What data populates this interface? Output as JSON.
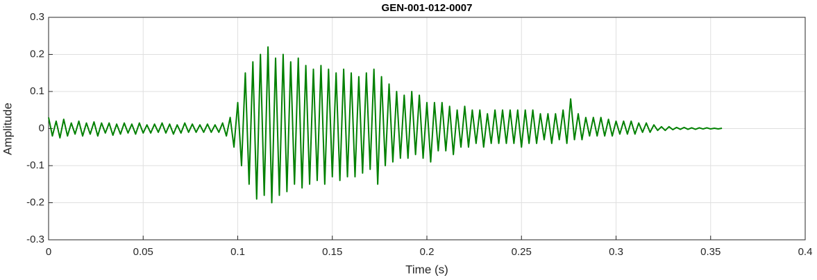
{
  "chart_data": {
    "type": "line",
    "title": "GEN-001-012-0007",
    "xlabel": "Time (s)",
    "ylabel": "Amplitude",
    "color": "#008000",
    "grid": true,
    "xlim": [
      0,
      0.4
    ],
    "xticks": [
      0,
      0.05,
      0.1,
      0.15,
      0.2,
      0.25,
      0.3,
      0.35,
      0.4
    ],
    "ylim": [
      -0.3,
      0.3
    ],
    "yticks": [
      -0.3,
      -0.2,
      -0.1,
      0,
      0.1,
      0.2,
      0.3
    ],
    "x": [
      0,
      0.002,
      0.004,
      0.006,
      0.008,
      0.01,
      0.012,
      0.014,
      0.016,
      0.018,
      0.02,
      0.022,
      0.024,
      0.026,
      0.028,
      0.03,
      0.032,
      0.034,
      0.036,
      0.038,
      0.04,
      0.042,
      0.044,
      0.046,
      0.048,
      0.05,
      0.052,
      0.054,
      0.056,
      0.058,
      0.06,
      0.062,
      0.064,
      0.066,
      0.068,
      0.07,
      0.072,
      0.074,
      0.076,
      0.078,
      0.08,
      0.082,
      0.084,
      0.086,
      0.088,
      0.09,
      0.092,
      0.094,
      0.096,
      0.098,
      0.1,
      0.102,
      0.104,
      0.106,
      0.108,
      0.11,
      0.112,
      0.114,
      0.116,
      0.118,
      0.12,
      0.122,
      0.124,
      0.126,
      0.128,
      0.13,
      0.132,
      0.134,
      0.136,
      0.138,
      0.14,
      0.142,
      0.144,
      0.146,
      0.148,
      0.15,
      0.152,
      0.154,
      0.156,
      0.158,
      0.16,
      0.162,
      0.164,
      0.166,
      0.168,
      0.17,
      0.172,
      0.174,
      0.176,
      0.178,
      0.18,
      0.182,
      0.184,
      0.186,
      0.188,
      0.19,
      0.192,
      0.194,
      0.196,
      0.198,
      0.2,
      0.202,
      0.204,
      0.206,
      0.208,
      0.21,
      0.212,
      0.214,
      0.216,
      0.218,
      0.22,
      0.222,
      0.224,
      0.226,
      0.228,
      0.23,
      0.232,
      0.234,
      0.236,
      0.238,
      0.24,
      0.242,
      0.244,
      0.246,
      0.248,
      0.25,
      0.252,
      0.254,
      0.256,
      0.258,
      0.26,
      0.262,
      0.264,
      0.266,
      0.268,
      0.27,
      0.272,
      0.274,
      0.276,
      0.278,
      0.28,
      0.282,
      0.284,
      0.286,
      0.288,
      0.29,
      0.292,
      0.294,
      0.296,
      0.298,
      0.3,
      0.302,
      0.304,
      0.306,
      0.308,
      0.31,
      0.312,
      0.314,
      0.316,
      0.318,
      0.32,
      0.322,
      0.324,
      0.326,
      0.328,
      0.33,
      0.332,
      0.334,
      0.336,
      0.338,
      0.34,
      0.342,
      0.344,
      0.346,
      0.348,
      0.35,
      0.352,
      0.354,
      0.356
    ],
    "values": [
      0.03,
      -0.02,
      0.02,
      -0.025,
      0.025,
      -0.02,
      0.015,
      -0.015,
      0.02,
      -0.02,
      0.015,
      -0.015,
      0.018,
      -0.02,
      0.015,
      -0.012,
      0.015,
      -0.018,
      0.012,
      -0.015,
      0.015,
      -0.012,
      0.012,
      -0.015,
      0.015,
      -0.012,
      0.01,
      -0.012,
      0.012,
      -0.01,
      0.015,
      -0.012,
      0.012,
      -0.015,
      0.01,
      -0.012,
      0.015,
      -0.01,
      0.012,
      -0.01,
      0.01,
      -0.01,
      0.012,
      -0.01,
      0.01,
      -0.01,
      0.015,
      -0.02,
      0.03,
      -0.05,
      0.07,
      -0.1,
      0.15,
      -0.15,
      0.18,
      -0.19,
      0.2,
      -0.18,
      0.22,
      -0.2,
      0.19,
      -0.18,
      0.2,
      -0.17,
      0.18,
      -0.15,
      0.19,
      -0.16,
      0.17,
      -0.15,
      0.16,
      -0.14,
      0.17,
      -0.15,
      0.16,
      -0.13,
      0.15,
      -0.14,
      0.16,
      -0.13,
      0.15,
      -0.13,
      0.14,
      -0.12,
      0.15,
      -0.11,
      0.16,
      -0.15,
      0.14,
      -0.1,
      0.12,
      -0.09,
      0.1,
      -0.08,
      0.09,
      -0.08,
      0.1,
      -0.07,
      0.09,
      -0.08,
      0.07,
      -0.09,
      0.07,
      -0.06,
      0.07,
      -0.06,
      0.06,
      -0.07,
      0.05,
      -0.05,
      0.06,
      -0.05,
      0.05,
      -0.04,
      0.05,
      -0.05,
      0.04,
      -0.04,
      0.05,
      -0.04,
      0.05,
      -0.04,
      0.05,
      -0.04,
      0.05,
      -0.05,
      0.05,
      -0.04,
      0.05,
      -0.04,
      0.04,
      -0.03,
      0.04,
      -0.04,
      0.04,
      -0.03,
      0.05,
      -0.04,
      0.08,
      -0.03,
      0.04,
      -0.03,
      0.03,
      -0.02,
      0.03,
      -0.02,
      0.03,
      -0.02,
      0.025,
      -0.02,
      0.02,
      -0.015,
      0.02,
      -0.015,
      0.02,
      -0.015,
      0.015,
      -0.01,
      0.015,
      -0.01,
      0.01,
      -0.005,
      0.005,
      -0.005,
      0.005,
      -0.003,
      0.003,
      -0.002,
      0.003,
      -0.002,
      0.002,
      -0.002,
      0.002,
      -0.001,
      0.002,
      -0.001,
      0.001,
      -0.001,
      0.001
    ]
  }
}
